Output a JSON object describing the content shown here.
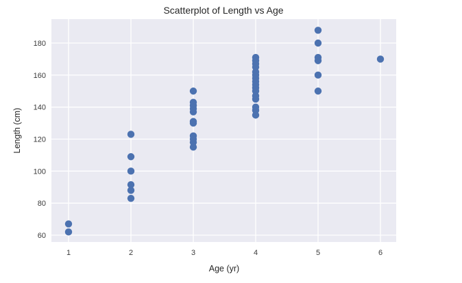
{
  "chart_data": {
    "type": "scatter",
    "title": "Scatterplot of Length vs Age",
    "xlabel": "Age (yr)",
    "ylabel": "Length (cm)",
    "xlim": [
      0.75,
      6.25
    ],
    "ylim": [
      56,
      195
    ],
    "xticks": [
      1,
      2,
      3,
      4,
      5,
      6
    ],
    "yticks": [
      60,
      80,
      100,
      120,
      140,
      160,
      180
    ],
    "grid": true,
    "legend": null,
    "marker_color": "#4c72b0",
    "background_color": "#eaeaf2",
    "points": [
      {
        "x": 1,
        "y": 67
      },
      {
        "x": 1,
        "y": 62
      },
      {
        "x": 2,
        "y": 123
      },
      {
        "x": 2,
        "y": 109
      },
      {
        "x": 2,
        "y": 100
      },
      {
        "x": 2,
        "y": 91.5
      },
      {
        "x": 2,
        "y": 88
      },
      {
        "x": 2,
        "y": 83
      },
      {
        "x": 3,
        "y": 150
      },
      {
        "x": 3,
        "y": 143
      },
      {
        "x": 3,
        "y": 141
      },
      {
        "x": 3,
        "y": 139
      },
      {
        "x": 3,
        "y": 137
      },
      {
        "x": 3,
        "y": 131
      },
      {
        "x": 3,
        "y": 130
      },
      {
        "x": 3,
        "y": 122
      },
      {
        "x": 3,
        "y": 120
      },
      {
        "x": 3,
        "y": 118
      },
      {
        "x": 3,
        "y": 115
      },
      {
        "x": 4,
        "y": 171
      },
      {
        "x": 4,
        "y": 169
      },
      {
        "x": 4,
        "y": 167
      },
      {
        "x": 4,
        "y": 165
      },
      {
        "x": 4,
        "y": 162
      },
      {
        "x": 4,
        "y": 160
      },
      {
        "x": 4,
        "y": 158
      },
      {
        "x": 4,
        "y": 156
      },
      {
        "x": 4,
        "y": 154
      },
      {
        "x": 4,
        "y": 152
      },
      {
        "x": 4,
        "y": 150
      },
      {
        "x": 4,
        "y": 147
      },
      {
        "x": 4,
        "y": 145
      },
      {
        "x": 4,
        "y": 140
      },
      {
        "x": 4,
        "y": 138
      },
      {
        "x": 4,
        "y": 135
      },
      {
        "x": 5,
        "y": 188
      },
      {
        "x": 5,
        "y": 180
      },
      {
        "x": 5,
        "y": 171
      },
      {
        "x": 5,
        "y": 169
      },
      {
        "x": 5,
        "y": 160
      },
      {
        "x": 5,
        "y": 150
      },
      {
        "x": 6,
        "y": 170
      }
    ]
  }
}
